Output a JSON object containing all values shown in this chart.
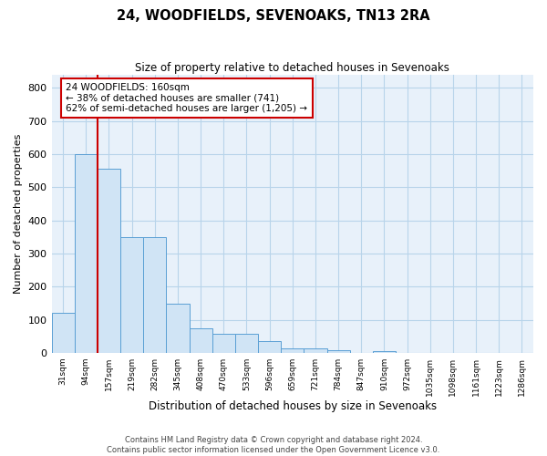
{
  "title": "24, WOODFIELDS, SEVENOAKS, TN13 2RA",
  "subtitle": "Size of property relative to detached houses in Sevenoaks",
  "xlabel": "Distribution of detached houses by size in Sevenoaks",
  "ylabel": "Number of detached properties",
  "bar_values": [
    120,
    600,
    555,
    348,
    348,
    148,
    75,
    57,
    57,
    35,
    13,
    13,
    8,
    0,
    5,
    0,
    0,
    0,
    0,
    0,
    0
  ],
  "bar_labels": [
    "31sqm",
    "94sqm",
    "157sqm",
    "219sqm",
    "282sqm",
    "345sqm",
    "408sqm",
    "470sqm",
    "533sqm",
    "596sqm",
    "659sqm",
    "721sqm",
    "784sqm",
    "847sqm",
    "910sqm",
    "972sqm",
    "1035sqm",
    "1098sqm",
    "1161sqm",
    "1223sqm",
    "1286sqm"
  ],
  "bar_color": "#d0e4f5",
  "bar_edge_color": "#5a9fd4",
  "vline_x_idx": 1.5,
  "vline_color": "#cc0000",
  "annotation_text": "24 WOODFIELDS: 160sqm\n← 38% of detached houses are smaller (741)\n62% of semi-detached houses are larger (1,205) →",
  "annotation_box_edge_color": "#cc0000",
  "ylim": [
    0,
    840
  ],
  "yticks": [
    0,
    100,
    200,
    300,
    400,
    500,
    600,
    700,
    800
  ],
  "grid_color": "#b8d4ea",
  "bg_color": "#e8f1fa",
  "footer": "Contains HM Land Registry data © Crown copyright and database right 2024.\nContains public sector information licensed under the Open Government Licence v3.0."
}
